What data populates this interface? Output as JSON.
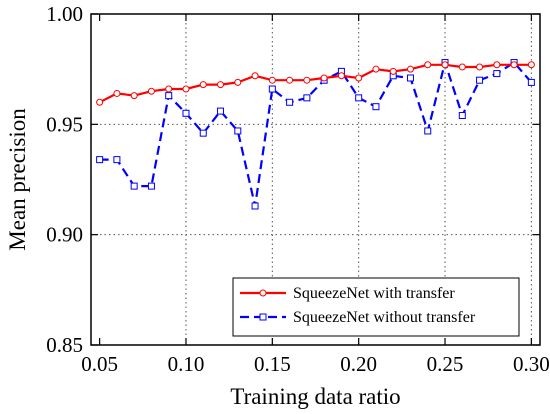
{
  "chart_data": {
    "type": "line",
    "xlabel": "Training data ratio",
    "ylabel": "Mean precision",
    "xlim": [
      0.045,
      0.305
    ],
    "ylim": [
      0.85,
      1.0
    ],
    "x_ticks": [
      0.05,
      0.1,
      0.15,
      0.2,
      0.25,
      0.3
    ],
    "x_tick_labels": [
      "0.05",
      "0.10",
      "0.15",
      "0.20",
      "0.25",
      "0.30"
    ],
    "y_ticks": [
      0.85,
      0.9,
      0.95,
      1.0
    ],
    "y_tick_labels": [
      "0.85",
      "0.90",
      "0.95",
      "1.00"
    ],
    "grid": true,
    "legend_position": "bottom-right",
    "x": [
      0.05,
      0.06,
      0.07,
      0.08,
      0.09,
      0.1,
      0.11,
      0.12,
      0.13,
      0.14,
      0.15,
      0.16,
      0.17,
      0.18,
      0.19,
      0.2,
      0.21,
      0.22,
      0.23,
      0.24,
      0.25,
      0.26,
      0.27,
      0.28,
      0.29,
      0.3
    ],
    "series": [
      {
        "name": "SqueezeNet with transfer",
        "color": "#ff0000",
        "line_style": "solid",
        "marker": "circle",
        "values": [
          0.96,
          0.964,
          0.963,
          0.965,
          0.966,
          0.966,
          0.968,
          0.968,
          0.969,
          0.972,
          0.97,
          0.97,
          0.97,
          0.971,
          0.972,
          0.971,
          0.975,
          0.974,
          0.975,
          0.977,
          0.977,
          0.976,
          0.976,
          0.977,
          0.977,
          0.977
        ]
      },
      {
        "name": "SqueezeNet without transfer",
        "color": "#0000ff",
        "line_style": "dashed",
        "marker": "square",
        "values": [
          0.934,
          0.934,
          0.922,
          0.922,
          0.963,
          0.955,
          0.946,
          0.956,
          0.947,
          0.913,
          0.966,
          0.96,
          0.962,
          0.97,
          0.974,
          0.962,
          0.958,
          0.972,
          0.971,
          0.947,
          0.978,
          0.954,
          0.97,
          0.973,
          0.978,
          0.969
        ]
      }
    ]
  }
}
